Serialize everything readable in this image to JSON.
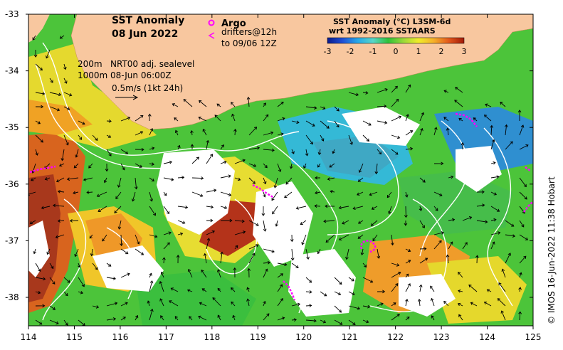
{
  "title": {
    "line1": "SST Anomaly",
    "line2": "08 Jun 2022"
  },
  "legend": {
    "argo_label": "Argo",
    "drifters_line1": "drifters@12h",
    "drifters_line2": "to 09/06 12Z",
    "argo_color": "#ff00ff",
    "drifter_color": "#ff00ff"
  },
  "colorbar": {
    "title_line1": "SST Anomaly (°C) L3SM-6d",
    "title_line2": "wrt 1992-2016 SSTAARS",
    "ticks": [
      "-3",
      "-2",
      "-1",
      "0",
      "1",
      "2",
      "3"
    ],
    "min": -3,
    "max": 3,
    "colors": [
      "#0a1a8c",
      "#1f4fd6",
      "#28a9e8",
      "#58d6c8",
      "#2fc23a",
      "#9ad93a",
      "#f0ec2a",
      "#f5b02a",
      "#e2571c",
      "#a01a08"
    ]
  },
  "info": {
    "line1_left": "200m",
    "line1_right": "NRT00 adj. sealevel",
    "line2_left": "1000m",
    "line2_right": "08-Jun 06:00Z",
    "scale_label": "0.5m/s (1kt 24h)"
  },
  "axes": {
    "lon_ticks": [
      "114",
      "115",
      "116",
      "117",
      "118",
      "119",
      "120",
      "121",
      "122",
      "123",
      "124",
      "125"
    ],
    "lat_ticks": [
      "-33",
      "-34",
      "-35",
      "-36",
      "-37",
      "-38"
    ],
    "lon_range": [
      114,
      125
    ],
    "lat_range": [
      -33,
      -38.5
    ]
  },
  "credit": "© IMOS 16-Jun-2022 11:38 Hobart",
  "colors": {
    "land": "#f8c79f",
    "no_data": "#ffffff",
    "contour": "#ffffff",
    "arrow": "#000000"
  }
}
